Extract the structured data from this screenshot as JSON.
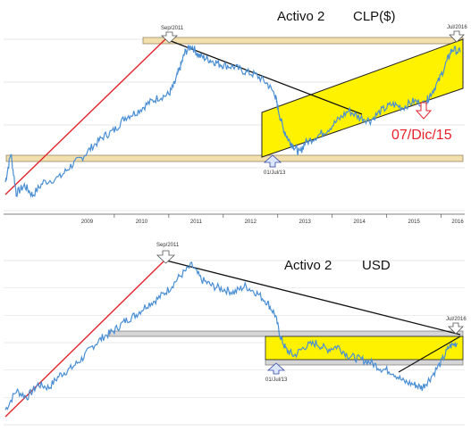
{
  "chart_data": [
    {
      "type": "line",
      "title": "Activo 2",
      "subtitle": "CLP($)",
      "x_ticks": [
        "2009",
        "2010",
        "2011",
        "2012",
        "2013",
        "2014",
        "2015",
        "2016"
      ],
      "grid": true,
      "series": [
        {
          "color": "#4a8fd4",
          "points": [
            [
              2008.0,
              0.12
            ],
            [
              2008.1,
              0.3
            ],
            [
              2008.2,
              0.05
            ],
            [
              2008.35,
              0.1
            ],
            [
              2008.5,
              0.04
            ],
            [
              2008.7,
              0.12
            ],
            [
              2009.0,
              0.15
            ],
            [
              2009.2,
              0.22
            ],
            [
              2009.4,
              0.27
            ],
            [
              2009.6,
              0.34
            ],
            [
              2009.8,
              0.4
            ],
            [
              2010.0,
              0.44
            ],
            [
              2010.2,
              0.52
            ],
            [
              2010.4,
              0.55
            ],
            [
              2010.6,
              0.6
            ],
            [
              2010.8,
              0.64
            ],
            [
              2011.0,
              0.66
            ],
            [
              2011.1,
              0.72
            ],
            [
              2011.2,
              0.82
            ],
            [
              2011.3,
              0.92
            ],
            [
              2011.42,
              0.96
            ],
            [
              2011.55,
              0.9
            ],
            [
              2011.7,
              0.88
            ],
            [
              2011.85,
              0.86
            ],
            [
              2012.0,
              0.84
            ],
            [
              2012.2,
              0.83
            ],
            [
              2012.4,
              0.8
            ],
            [
              2012.6,
              0.78
            ],
            [
              2012.8,
              0.73
            ],
            [
              2012.95,
              0.66
            ],
            [
              2013.0,
              0.58
            ],
            [
              2013.1,
              0.45
            ],
            [
              2013.2,
              0.38
            ],
            [
              2013.3,
              0.34
            ],
            [
              2013.4,
              0.3
            ],
            [
              2013.5,
              0.36
            ],
            [
              2013.7,
              0.4
            ],
            [
              2013.9,
              0.44
            ],
            [
              2014.1,
              0.5
            ],
            [
              2014.3,
              0.56
            ],
            [
              2014.5,
              0.52
            ],
            [
              2014.7,
              0.5
            ],
            [
              2014.9,
              0.56
            ],
            [
              2015.1,
              0.6
            ],
            [
              2015.3,
              0.58
            ],
            [
              2015.5,
              0.62
            ],
            [
              2015.7,
              0.6
            ],
            [
              2015.8,
              0.66
            ],
            [
              2015.95,
              0.74
            ],
            [
              2016.1,
              0.86
            ],
            [
              2016.2,
              0.94
            ],
            [
              2016.35,
              0.92
            ]
          ]
        }
      ],
      "annotations": {
        "top_mark": "Sep/2011",
        "right_mark": "Jul/2016",
        "bottom_mark": "01/Jul/13",
        "alert_date": "07/Dic/15"
      }
    },
    {
      "type": "line",
      "title": "Activo 2",
      "subtitle": "USD",
      "grid": true,
      "series": [
        {
          "color": "#4a8fd4",
          "points": [
            [
              2008.0,
              0.06
            ],
            [
              2008.2,
              0.18
            ],
            [
              2008.4,
              0.14
            ],
            [
              2008.6,
              0.22
            ],
            [
              2008.8,
              0.2
            ],
            [
              2009.0,
              0.28
            ],
            [
              2009.2,
              0.32
            ],
            [
              2009.4,
              0.38
            ],
            [
              2009.6,
              0.46
            ],
            [
              2009.8,
              0.52
            ],
            [
              2010.0,
              0.56
            ],
            [
              2010.2,
              0.62
            ],
            [
              2010.4,
              0.66
            ],
            [
              2010.6,
              0.72
            ],
            [
              2010.8,
              0.76
            ],
            [
              2011.0,
              0.82
            ],
            [
              2011.2,
              0.9
            ],
            [
              2011.42,
              0.97
            ],
            [
              2011.6,
              0.88
            ],
            [
              2011.8,
              0.84
            ],
            [
              2012.0,
              0.82
            ],
            [
              2012.2,
              0.8
            ],
            [
              2012.4,
              0.84
            ],
            [
              2012.6,
              0.8
            ],
            [
              2012.8,
              0.74
            ],
            [
              2012.95,
              0.66
            ],
            [
              2013.05,
              0.52
            ],
            [
              2013.15,
              0.44
            ],
            [
              2013.3,
              0.4
            ],
            [
              2013.5,
              0.46
            ],
            [
              2013.7,
              0.48
            ],
            [
              2013.9,
              0.44
            ],
            [
              2014.1,
              0.46
            ],
            [
              2014.3,
              0.4
            ],
            [
              2014.5,
              0.38
            ],
            [
              2014.7,
              0.36
            ],
            [
              2014.9,
              0.32
            ],
            [
              2015.1,
              0.3
            ],
            [
              2015.3,
              0.24
            ],
            [
              2015.5,
              0.22
            ],
            [
              2015.65,
              0.2
            ],
            [
              2015.8,
              0.26
            ],
            [
              2016.0,
              0.36
            ],
            [
              2016.15,
              0.46
            ],
            [
              2016.3,
              0.48
            ]
          ]
        }
      ],
      "annotations": {
        "top_mark": "Sep/2011",
        "right_mark": "Jul/2016",
        "bottom_mark": "01/Jul/13"
      }
    }
  ]
}
